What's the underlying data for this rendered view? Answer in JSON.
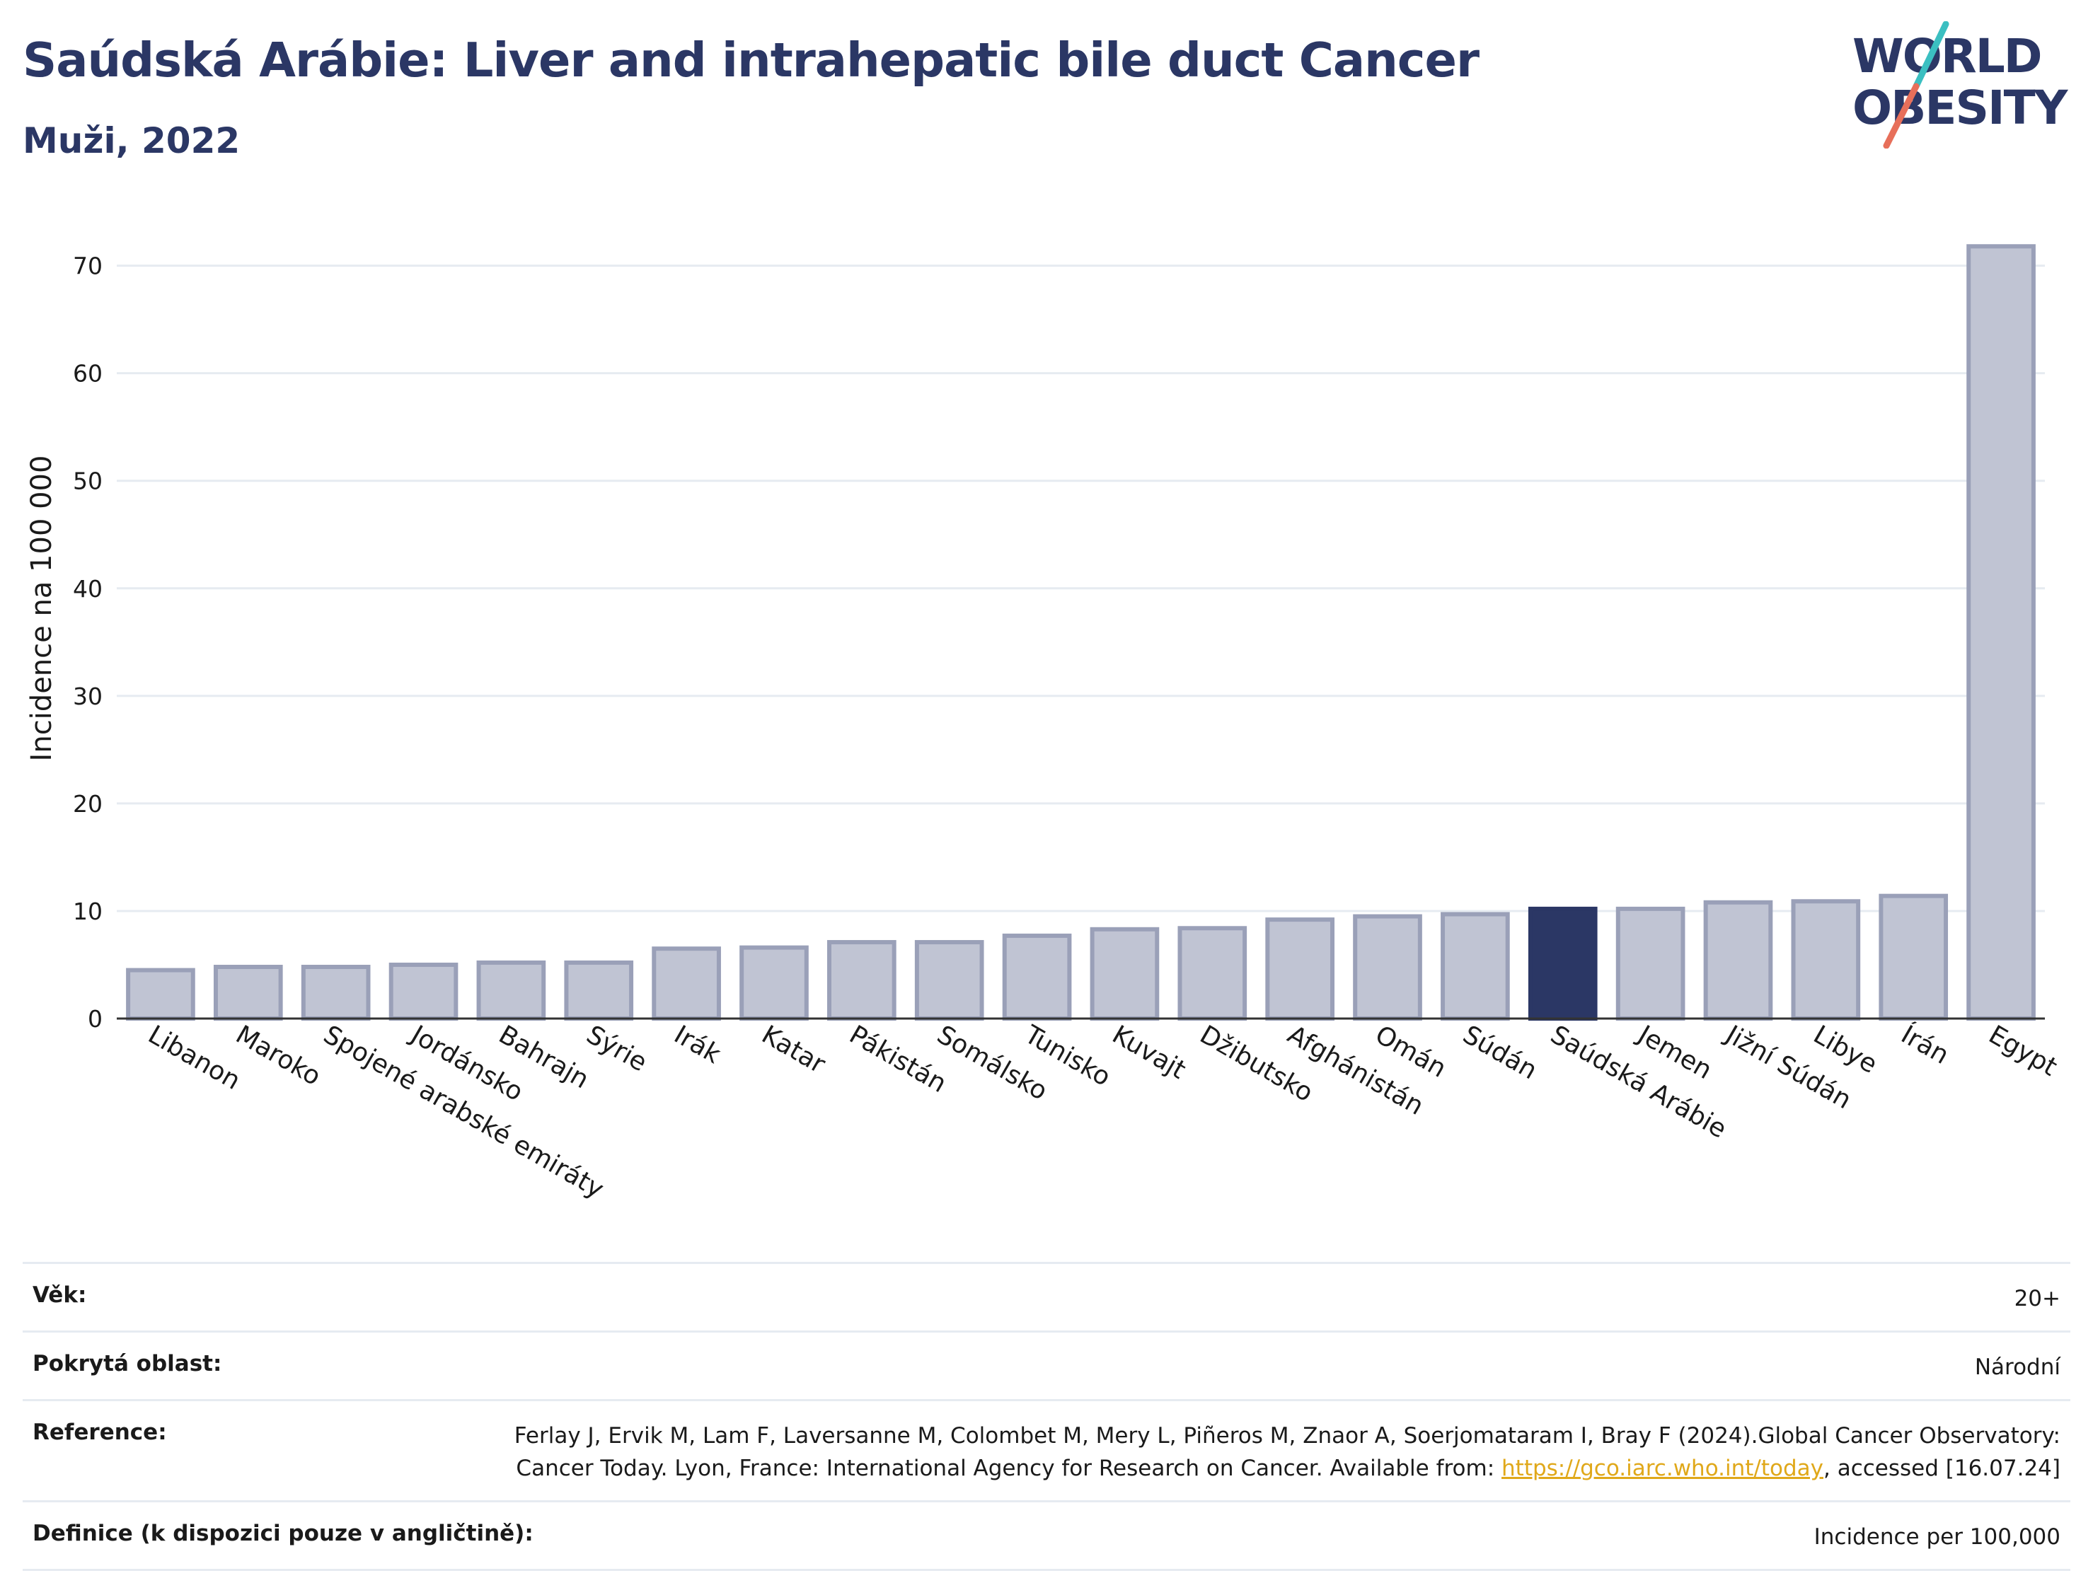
{
  "header": {
    "title": "Saúdská Arábie: Liver and intrahepatic bile duct Cancer",
    "subtitle": "Muži, 2022"
  },
  "logo": {
    "line1": "WORLD",
    "line2": "OBESITY",
    "colors": {
      "text": "#2b3765",
      "slash_teal": "#3bbfc1",
      "slash_coral": "#e76f5a"
    }
  },
  "chart_data": {
    "type": "bar",
    "title": "",
    "xlabel": "",
    "ylabel": "Incidence na 100 000",
    "ylim": [
      0,
      73
    ],
    "yticks": [
      0,
      10,
      20,
      30,
      40,
      50,
      60,
      70
    ],
    "grid": true,
    "categories": [
      "Libanon",
      "Maroko",
      "Spojené arabské emiráty",
      "Jordánsko",
      "Bahrajn",
      "Sýrie",
      "Irák",
      "Katar",
      "Pákistán",
      "Somálsko",
      "Tunisko",
      "Kuvajt",
      "Džibutsko",
      "Afghánistán",
      "Omán",
      "Súdán",
      "Saúdská Arábie",
      "Jemen",
      "Jižní Súdán",
      "Libye",
      "Írán",
      "Egypt"
    ],
    "values": [
      4.5,
      4.8,
      4.8,
      5.0,
      5.2,
      5.2,
      6.5,
      6.6,
      7.1,
      7.1,
      7.7,
      8.3,
      8.4,
      9.2,
      9.5,
      9.7,
      10.2,
      10.2,
      10.8,
      10.9,
      11.4,
      71.8
    ],
    "highlight": "Saúdská Arábie",
    "colors": {
      "bar": "#c0c4d3",
      "bar_edge": "#9aa0b8",
      "highlight": "#2b3765",
      "grid": "#e6ebf1"
    }
  },
  "info": {
    "age_label": "Věk:",
    "age_value": "20+",
    "coverage_label": "Pokrytá oblast:",
    "coverage_value": "Národní",
    "reference_label": "Reference:",
    "reference_text_1": "Ferlay J, Ervik M, Lam F, Laversanne M, Colombet M, Mery L, Piñeros M, Znaor A, Soerjomataram I, Bray F (2024).Global Cancer Observatory: Cancer Today. Lyon, France: International Agency for Research on Cancer. Available from: ",
    "reference_link": "https://gco.iarc.who.int/today",
    "reference_text_2": ", accessed [16.07.24]",
    "definition_label": "Definice (k dispozici pouze v angličtině):",
    "definition_value": "Incidence per 100,000"
  }
}
